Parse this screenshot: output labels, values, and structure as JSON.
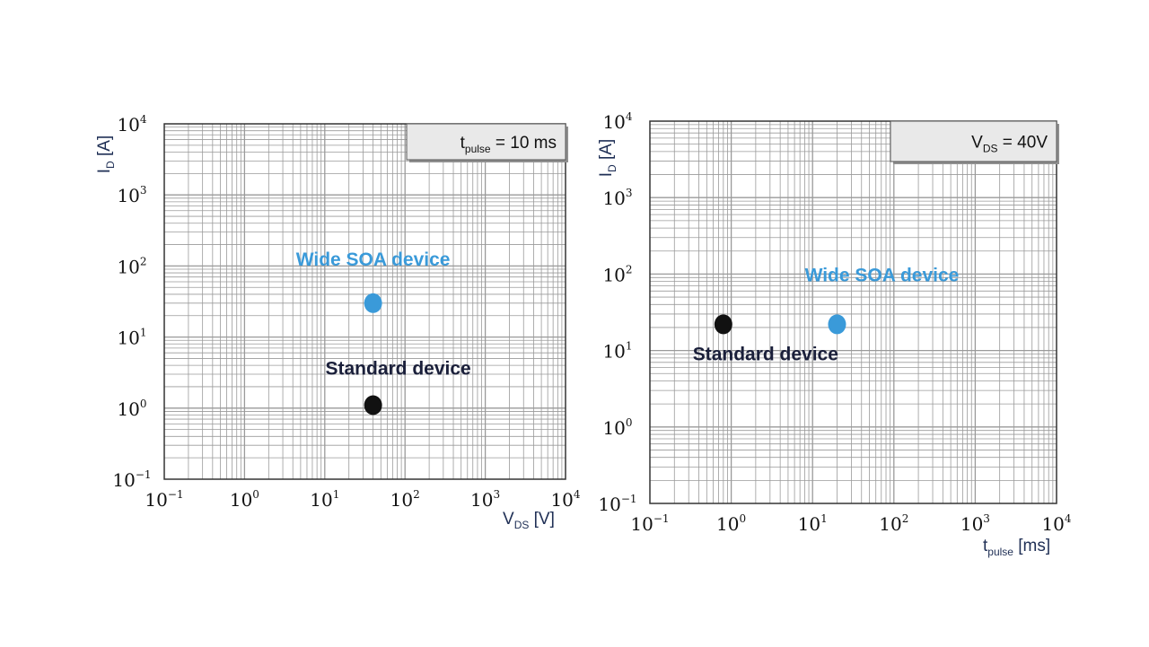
{
  "chart_data": [
    {
      "type": "scatter",
      "title": "",
      "xlabel": {
        "main": "V",
        "sub": "DS",
        "unit": " [V]"
      },
      "ylabel": {
        "main": "I",
        "sub": "D",
        "unit": " [A]"
      },
      "xscale": "log",
      "yscale": "log",
      "xlim": [
        0.1,
        10000
      ],
      "ylim": [
        0.1,
        10000
      ],
      "grid": true,
      "x_ticks": [
        {
          "base": "10",
          "exp": "−1"
        },
        {
          "base": "10",
          "exp": "0"
        },
        {
          "base": "10",
          "exp": "1"
        },
        {
          "base": "10",
          "exp": "2"
        },
        {
          "base": "10",
          "exp": "3"
        },
        {
          "base": "10",
          "exp": "4"
        }
      ],
      "y_ticks": [
        {
          "base": "10",
          "exp": "−1"
        },
        {
          "base": "10",
          "exp": "0"
        },
        {
          "base": "10",
          "exp": "1"
        },
        {
          "base": "10",
          "exp": "2"
        },
        {
          "base": "10",
          "exp": "3"
        },
        {
          "base": "10",
          "exp": "4"
        }
      ],
      "legend_box": {
        "main": "t",
        "sub": "pulse",
        "rest": " = 10 ms",
        "placement": "top-right"
      },
      "series": [
        {
          "name": "Wide SOA device",
          "color": "#3a9ad9",
          "points": [
            {
              "x": 40,
              "y": 30
            }
          ]
        },
        {
          "name": "Standard device",
          "color": "#111111",
          "points": [
            {
              "x": 40,
              "y": 1.1
            }
          ]
        }
      ]
    },
    {
      "type": "scatter",
      "title": "",
      "xlabel": {
        "main": "t",
        "sub": "pulse",
        "unit": " [ms]"
      },
      "ylabel": {
        "main": "I",
        "sub": "D",
        "unit": " [A]"
      },
      "xscale": "log",
      "yscale": "log",
      "xlim": [
        0.1,
        10000
      ],
      "ylim": [
        0.1,
        10000
      ],
      "grid": true,
      "x_ticks": [
        {
          "base": "10",
          "exp": "−1"
        },
        {
          "base": "10",
          "exp": "0"
        },
        {
          "base": "10",
          "exp": "1"
        },
        {
          "base": "10",
          "exp": "2"
        },
        {
          "base": "10",
          "exp": "3"
        },
        {
          "base": "10",
          "exp": "4"
        }
      ],
      "y_ticks": [
        {
          "base": "10",
          "exp": "−1"
        },
        {
          "base": "10",
          "exp": "0"
        },
        {
          "base": "10",
          "exp": "1"
        },
        {
          "base": "10",
          "exp": "2"
        },
        {
          "base": "10",
          "exp": "3"
        },
        {
          "base": "10",
          "exp": "4"
        }
      ],
      "legend_box": {
        "main": "V",
        "sub": "DS",
        "rest": " = 40V",
        "placement": "top-right"
      },
      "series": [
        {
          "name": "Wide SOA device",
          "color": "#3a9ad9",
          "points": [
            {
              "x": 20,
              "y": 22
            }
          ]
        },
        {
          "name": "Standard device",
          "color": "#111111",
          "points": [
            {
              "x": 0.8,
              "y": 22
            }
          ]
        }
      ]
    }
  ],
  "colors": {
    "grid": "#9a9a9a",
    "axis_title": "#1f2f55",
    "frame": "#333333"
  }
}
